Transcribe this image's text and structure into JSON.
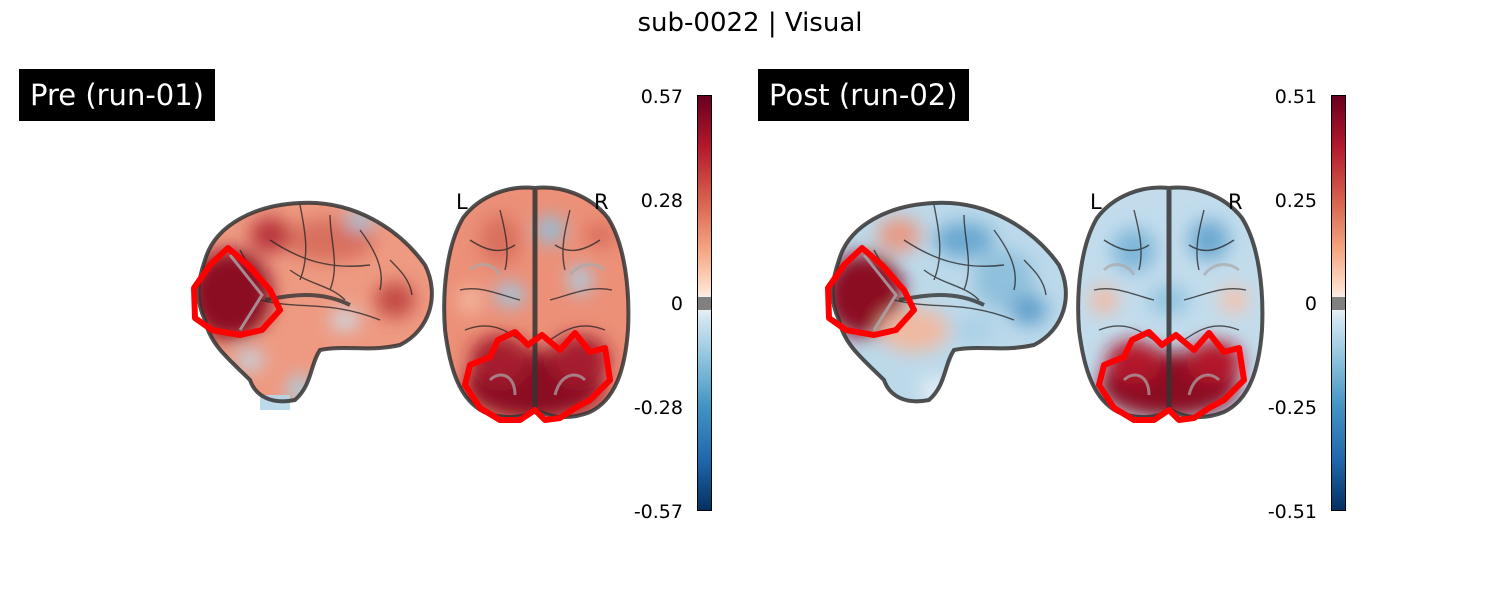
{
  "title": "sub-0022 | Visual",
  "panels": [
    {
      "label": "Pre (run-01)",
      "left_label": "L",
      "right_label": "R",
      "colorbar_ticks": [
        "0.57",
        "0.28",
        "0",
        "-0.28",
        "-0.57"
      ],
      "colorbar_range": [
        -0.57,
        0.57
      ]
    },
    {
      "label": "Post (run-02)",
      "left_label": "L",
      "right_label": "R",
      "colorbar_ticks": [
        "0.51",
        "0.25",
        "0",
        "-0.25",
        "-0.51"
      ],
      "colorbar_range": [
        -0.51,
        0.51
      ]
    }
  ],
  "colors": {
    "roi_outline": "#ff0000",
    "positive_max": "#67001f",
    "negative_max": "#053061",
    "zero_gray": "#808080",
    "label_bg": "#000000"
  }
}
